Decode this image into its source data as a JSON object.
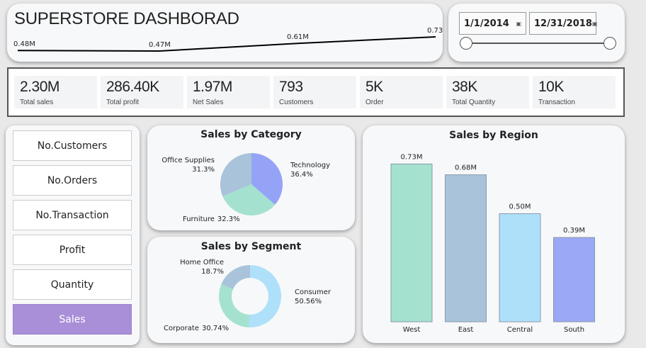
{
  "header": {
    "title": "SUPERSTORE DASHBORAD",
    "sparkline": {
      "values": [
        0.48,
        0.47,
        0.61,
        0.73
      ],
      "labels": [
        "0.48M",
        "0.47M",
        "0.61M",
        "0.73M"
      ]
    }
  },
  "date_filter": {
    "start": "1/1/2014",
    "end": "12/31/2018",
    "icon": "calendar-icon",
    "range_fraction": [
      0,
      1
    ]
  },
  "kpis": [
    {
      "value": "2.30M",
      "label": "Total sales"
    },
    {
      "value": "286.40K",
      "label": "Total profit"
    },
    {
      "value": "1.97M",
      "label": "Net Sales"
    },
    {
      "value": "793",
      "label": "Customers"
    },
    {
      "value": "5K",
      "label": "Order"
    },
    {
      "value": "38K",
      "label": "Total Quantity"
    },
    {
      "value": "10K",
      "label": "Transaction"
    }
  ],
  "measures": [
    {
      "label": "No.Customers",
      "active": false
    },
    {
      "label": "No.Orders",
      "active": false
    },
    {
      "label": "No.Transaction",
      "active": false
    },
    {
      "label": "Profit",
      "active": false
    },
    {
      "label": "Quantity",
      "active": false
    },
    {
      "label": "Sales",
      "active": true
    }
  ],
  "chart_data": [
    {
      "type": "pie",
      "title": "Sales by Category",
      "categories": [
        "Technology",
        "Furniture",
        "Office Supplies"
      ],
      "values": [
        36.4,
        32.3,
        31.3
      ],
      "labels": [
        "36.4%",
        "32.3%",
        "31.3%"
      ],
      "colors": [
        "#95a3f6",
        "#a4e2cf",
        "#a8c3da"
      ]
    },
    {
      "type": "donut",
      "title": "Sales by Segment",
      "categories": [
        "Consumer",
        "Corporate",
        "Home Office"
      ],
      "values": [
        50.56,
        30.74,
        18.7
      ],
      "labels": [
        "50.56%",
        "30.74%",
        "18.7%"
      ],
      "colors": [
        "#aee0fa",
        "#a4e2cf",
        "#a8c3da"
      ]
    },
    {
      "type": "bar",
      "title": "Sales by Region",
      "categories": [
        "West",
        "East",
        "Central",
        "South"
      ],
      "values": [
        0.73,
        0.68,
        0.5,
        0.39
      ],
      "labels": [
        "0.73M",
        "0.68M",
        "0.50M",
        "0.39M"
      ],
      "colors": [
        "#a4e2cf",
        "#a8c3da",
        "#aee0fa",
        "#9aa8f6"
      ]
    }
  ]
}
